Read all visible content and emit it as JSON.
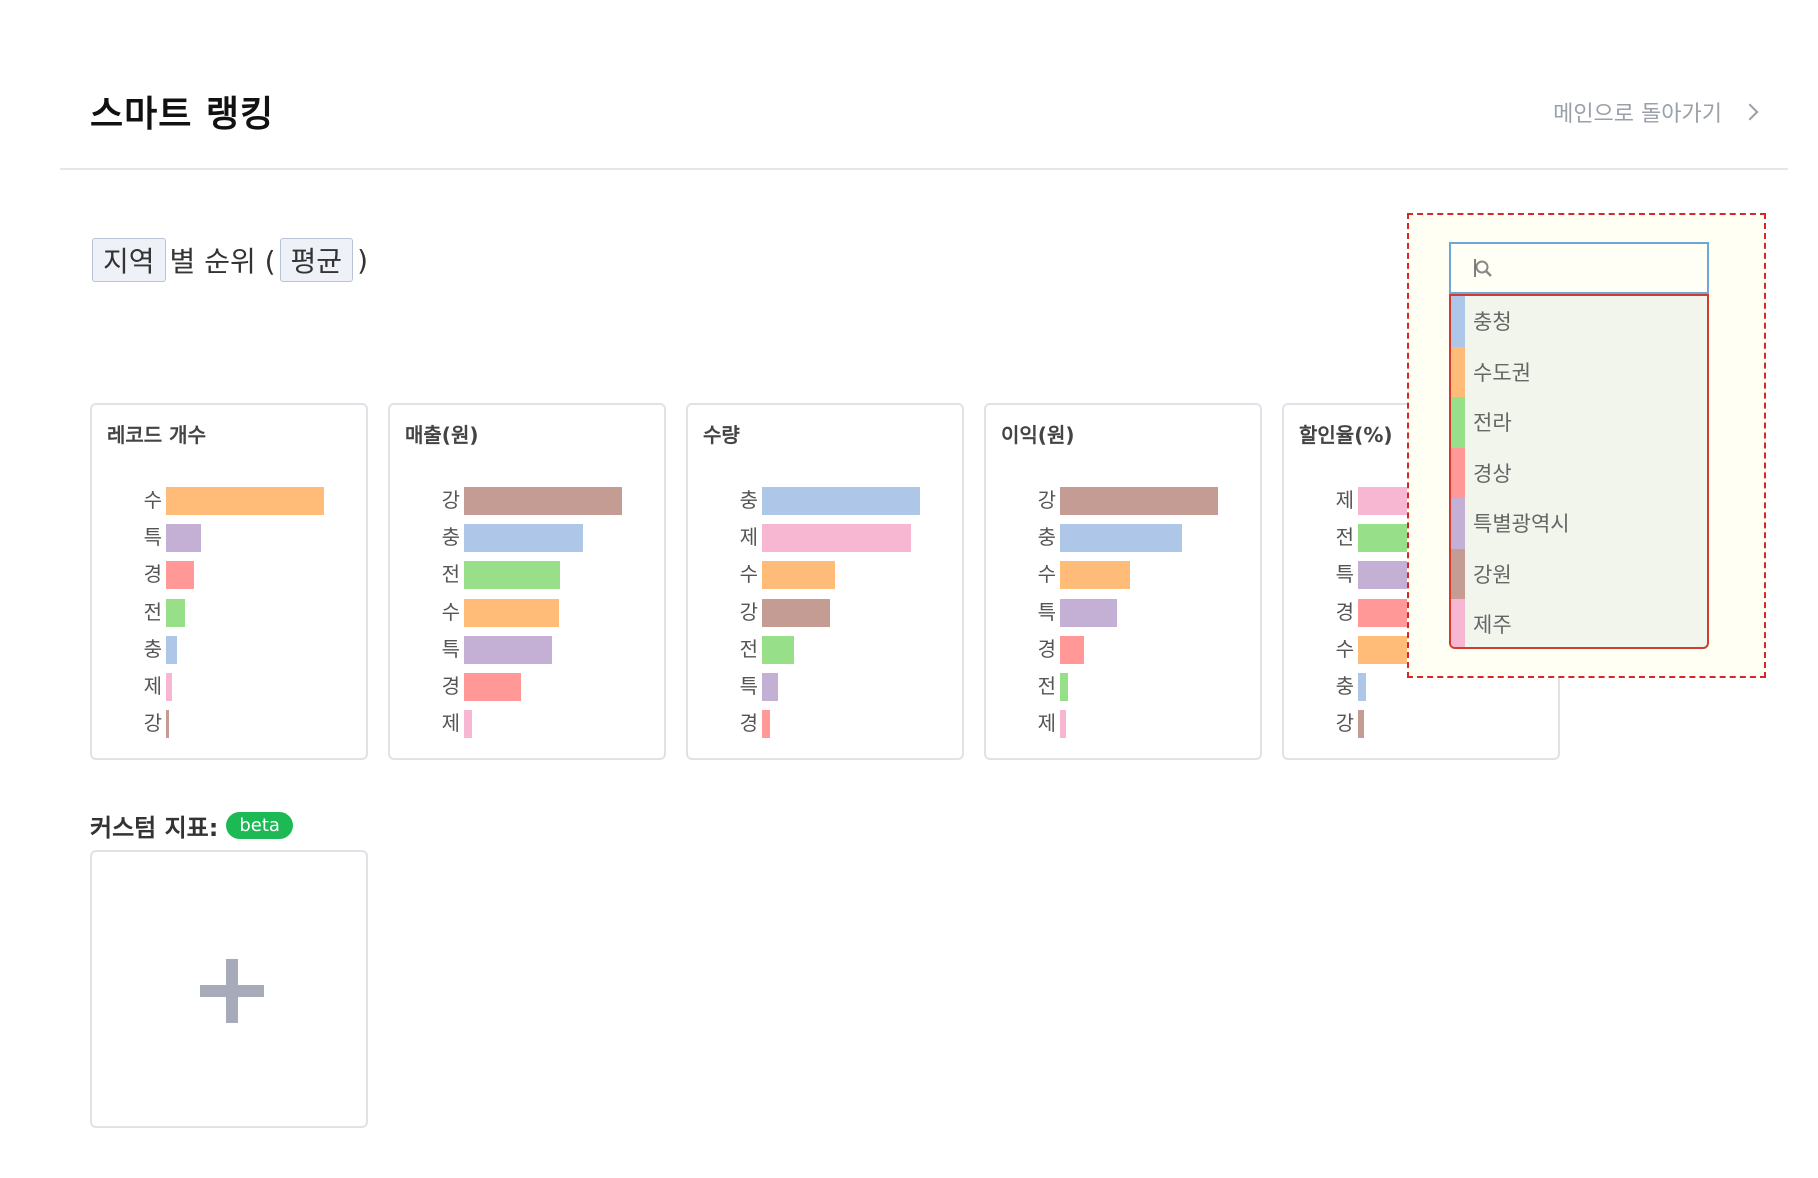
{
  "header": {
    "title": "스마트 랭킹",
    "back_label": "메인으로 돌아가기"
  },
  "subtitle": {
    "dimension": "지역",
    "text_mid": "별 순위 (",
    "aggregation": "평균",
    "text_end": ")"
  },
  "colors": {
    "수": "#ffbb78",
    "특": "#c5b0d5",
    "경": "#ff9896",
    "전": "#98df8a",
    "충": "#aec7e8",
    "제": "#f7b6d2",
    "강": "#c49c94"
  },
  "chart_data": [
    {
      "type": "bar",
      "title": "레코드 개수",
      "categories": [
        "수",
        "특",
        "경",
        "전",
        "충",
        "제",
        "강"
      ],
      "values": [
        100,
        22,
        18,
        12,
        7,
        4,
        2
      ]
    },
    {
      "type": "bar",
      "title": "매출(원)",
      "categories": [
        "강",
        "충",
        "전",
        "수",
        "특",
        "경",
        "제"
      ],
      "values": [
        100,
        75,
        61,
        60,
        56,
        36,
        5
      ]
    },
    {
      "type": "bar",
      "title": "수량",
      "categories": [
        "충",
        "제",
        "수",
        "강",
        "전",
        "특",
        "경"
      ],
      "values": [
        100,
        94,
        46,
        43,
        20,
        10,
        5
      ]
    },
    {
      "type": "bar",
      "title": "이익(원)",
      "categories": [
        "강",
        "충",
        "수",
        "특",
        "경",
        "전",
        "제"
      ],
      "values": [
        100,
        77,
        44,
        36,
        15,
        5,
        4
      ]
    },
    {
      "type": "bar",
      "title": "할인율(%)",
      "categories": [
        "제",
        "전",
        "특",
        "경",
        "수",
        "충",
        "강"
      ],
      "values": [
        100,
        99,
        97,
        95,
        46,
        5,
        4
      ]
    }
  ],
  "custom_metric": {
    "label": "커스텀 지표:",
    "badge": "beta"
  },
  "dropdown": {
    "search_value": "",
    "items": [
      {
        "label": "충청",
        "color": "#aec7e8"
      },
      {
        "label": "수도권",
        "color": "#ffbb78"
      },
      {
        "label": "전라",
        "color": "#98df8a"
      },
      {
        "label": "경상",
        "color": "#ff9896"
      },
      {
        "label": "특별광역시",
        "color": "#c5b0d5"
      },
      {
        "label": "강원",
        "color": "#c49c94"
      },
      {
        "label": "제주",
        "color": "#f7b6d2"
      }
    ]
  }
}
